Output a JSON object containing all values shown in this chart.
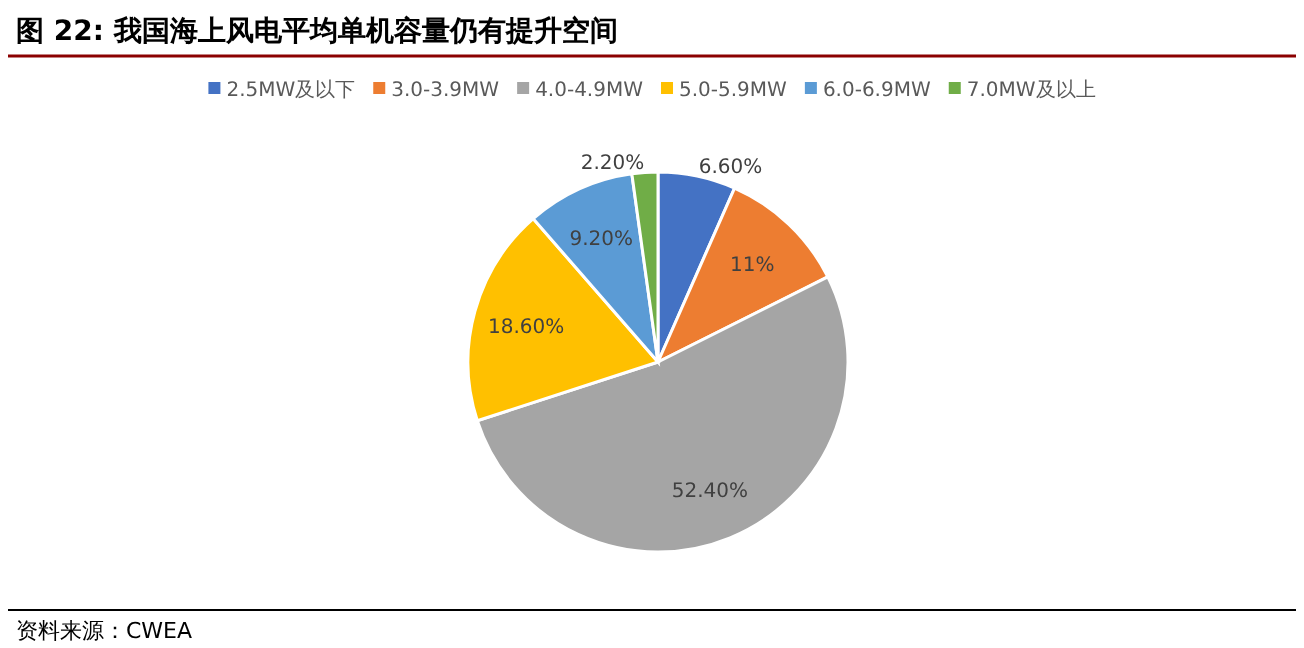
{
  "chart_data": {
    "type": "pie",
    "title": "图 22:  我国海上风电平均单机容量仍有提升空间",
    "categories": [
      "2.5MW及以下",
      "3.0-3.9MW",
      "4.0-4.9MW",
      "5.0-5.9MW",
      "6.0-6.9MW",
      "7.0MW及以上"
    ],
    "values": [
      6.6,
      11,
      52.4,
      18.6,
      9.2,
      2.2
    ],
    "value_labels": [
      "6.60%",
      "11%",
      "52.40%",
      "18.60%",
      "9.20%",
      "2.20%"
    ],
    "colors": [
      "#4472c4",
      "#ed7d31",
      "#a5a5a5",
      "#ffc000",
      "#5b9bd5",
      "#70ad47"
    ],
    "legend": "top",
    "annotations": [
      "资料来源：CWEA"
    ]
  }
}
